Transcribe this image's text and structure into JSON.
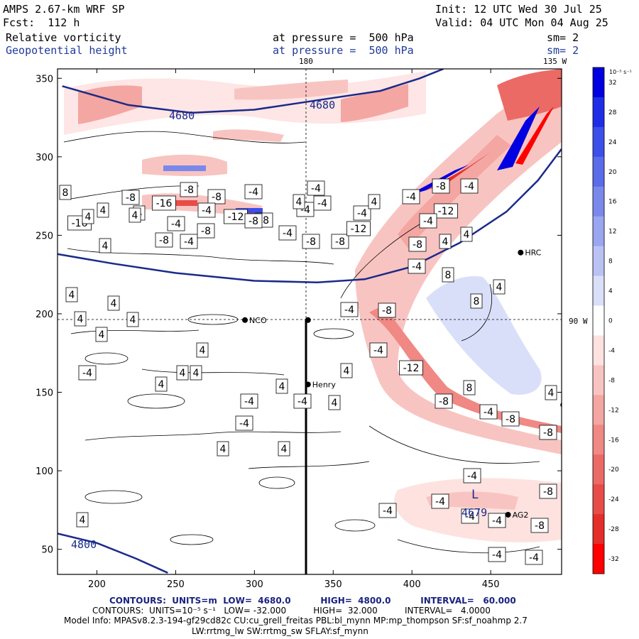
{
  "header": {
    "model": "AMPS 2.67-km WRF SP",
    "init": "Init: 12 UTC Wed 30 Jul 25",
    "fcst": "Fcst:  112 h",
    "valid": "Valid: 04 UTC Mon 04 Aug 25",
    "field1": "Relative vorticity",
    "field2": "Geopotential height",
    "pressure1": "at pressure =  500 hPa",
    "pressure2": "at pressure =  500 hPa",
    "sm1": "sm= 2",
    "sm2": "sm= 2"
  },
  "map_labels": {
    "lon_180": "180",
    "lon_135w": "135 W",
    "lon_90w": "90 W"
  },
  "stations": [
    {
      "name": "NCO",
      "x": 294,
      "y": 196
    },
    {
      "name": "Henry",
      "x": 334,
      "y": 155
    },
    {
      "name": "HRC",
      "x": 469,
      "y": 239
    },
    {
      "name": "AG2",
      "x": 461,
      "y": 72
    },
    {
      "name": "",
      "x": 334,
      "y": 196
    },
    {
      "name": "",
      "x": 496,
      "y": 142
    }
  ],
  "chart_data": {
    "type": "heatmap",
    "title": "Relative vorticity / Geopotential height at 500 hPa",
    "x_ticks": [
      200,
      250,
      300,
      350,
      400,
      450
    ],
    "y_ticks": [
      50,
      100,
      150,
      200,
      250,
      300,
      350
    ],
    "xlim": [
      175,
      495
    ],
    "ylim": [
      34,
      356
    ],
    "colorbar": {
      "unit": "10⁻⁵ s⁻¹",
      "levels": [
        32,
        28,
        24,
        20,
        16,
        12,
        8,
        4,
        0,
        -4,
        -8,
        -12,
        -16,
        -20,
        -24,
        -28,
        -32
      ],
      "colors": [
        "#0000e0",
        "#1f2ee6",
        "#3c4fe8",
        "#5a6ce9",
        "#7a88ec",
        "#9aa6f0",
        "#bac2f4",
        "#dadff9",
        "#ffffff",
        "#fde2e0",
        "#f8c4c1",
        "#f4a6a2",
        "#f08884",
        "#ec6a66",
        "#e84c48",
        "#e42e2a",
        "#ff0000"
      ]
    },
    "height_contours": [
      {
        "label": "4680",
        "points": [
          [
            178,
            345
          ],
          [
            220,
            333
          ],
          [
            260,
            328
          ],
          [
            300,
            330
          ],
          [
            340,
            336
          ],
          [
            380,
            342
          ],
          [
            405,
            350
          ],
          [
            420,
            356
          ]
        ]
      },
      {
        "label": "",
        "points": [
          [
            175,
            238
          ],
          [
            210,
            232
          ],
          [
            250,
            226
          ],
          [
            300,
            221
          ],
          [
            340,
            220
          ],
          [
            370,
            222
          ],
          [
            400,
            230
          ],
          [
            430,
            245
          ],
          [
            460,
            265
          ],
          [
            480,
            285
          ],
          [
            495,
            305
          ]
        ]
      },
      {
        "label": "4800",
        "points": [
          [
            175,
            60
          ],
          [
            200,
            54
          ],
          [
            225,
            44
          ],
          [
            245,
            35
          ]
        ]
      },
      {
        "label": "4679",
        "points": []
      }
    ],
    "vorticity_labels": [
      {
        "v": "-8",
        "x": 231,
        "y": 338
      },
      {
        "v": "-4",
        "x": 266,
        "y": 340
      },
      {
        "v": "-8",
        "x": 438,
        "y": 340
      },
      {
        "v": "-8",
        "x": 479,
        "y": 340
      },
      {
        "v": "-12",
        "x": 505,
        "y": 322
      },
      {
        "v": "-8",
        "x": 290,
        "y": 325
      },
      {
        "v": "-16",
        "x": 112,
        "y": 314
      },
      {
        "v": "-4",
        "x": 248,
        "y": 315
      },
      {
        "v": "-12",
        "x": 332,
        "y": 305
      },
      {
        "v": "-8",
        "x": 372,
        "y": 310
      },
      {
        "v": "-4",
        "x": 430,
        "y": 295
      },
      {
        "v": "-4",
        "x": 510,
        "y": 300
      },
      {
        "v": "-12",
        "x": 628,
        "y": 297
      },
      {
        "v": "4",
        "x": 657,
        "y": 330
      },
      {
        "v": "4",
        "x": 145,
        "y": 296
      },
      {
        "v": "4",
        "x": 196,
        "y": 300
      },
      {
        "v": "-8",
        "x": 184,
        "y": 278
      },
      {
        "v": "-8",
        "x": 305,
        "y": 277
      },
      {
        "v": "-4",
        "x": 357,
        "y": 270
      },
      {
        "v": "-8",
        "x": 266,
        "y": 267
      },
      {
        "v": "-4",
        "x": 445,
        "y": 265
      },
      {
        "v": "-8",
        "x": 621,
        "y": 262
      },
      {
        "v": "-4",
        "x": 661,
        "y": 262
      },
      {
        "v": "8",
        "x": 92,
        "y": 271
      },
      {
        "v": "-4",
        "x": 579,
        "y": 277
      },
      {
        "v": "-16",
        "x": 231,
        "y": 286
      },
      {
        "v": "-4",
        "x": 291,
        "y": 296
      },
      {
        "v": "-8",
        "x": 357,
        "y": 311
      },
      {
        "v": "-4",
        "x": 454,
        "y": 286
      },
      {
        "v": "4",
        "x": 527,
        "y": 284
      },
      {
        "v": "4",
        "x": 190,
        "y": 303
      },
      {
        "v": "4",
        "x": 124,
        "y": 305
      },
      {
        "v": "-4",
        "x": 405,
        "y": 328
      },
      {
        "v": "-4",
        "x": 603,
        "y": 311
      },
      {
        "v": "4",
        "x": 148,
        "y": 346
      },
      {
        "v": "-8",
        "x": 588,
        "y": 344
      },
      {
        "v": "4",
        "x": 627,
        "y": 340
      },
      {
        "v": "-4",
        "x": 587,
        "y": 375
      },
      {
        "v": "8",
        "x": 631,
        "y": 387
      },
      {
        "v": "4",
        "x": 703,
        "y": 404
      },
      {
        "v": "8",
        "x": 671,
        "y": 424
      },
      {
        "v": "4",
        "x": 101,
        "y": 415
      },
      {
        "v": "4",
        "x": 160,
        "y": 427
      },
      {
        "v": "4",
        "x": 113,
        "y": 449
      },
      {
        "v": "4",
        "x": 187,
        "y": 450
      },
      {
        "v": "-4",
        "x": 492,
        "y": 436
      },
      {
        "v": "-8",
        "x": 545,
        "y": 437
      },
      {
        "v": "4",
        "x": 143,
        "y": 471
      },
      {
        "v": "4",
        "x": 285,
        "y": 493
      },
      {
        "v": "-4",
        "x": 533,
        "y": 493
      },
      {
        "v": "-4",
        "x": 123,
        "y": 525
      },
      {
        "v": "4",
        "x": 257,
        "y": 525
      },
      {
        "v": "4",
        "x": 276,
        "y": 525
      },
      {
        "v": "-12",
        "x": 579,
        "y": 518
      },
      {
        "v": "4",
        "x": 488,
        "y": 522
      },
      {
        "v": "4",
        "x": 227,
        "y": 541
      },
      {
        "v": "4",
        "x": 397,
        "y": 544
      },
      {
        "v": "8",
        "x": 661,
        "y": 546
      },
      {
        "v": "-4",
        "x": 351,
        "y": 565
      },
      {
        "v": "-4",
        "x": 426,
        "y": 565
      },
      {
        "v": "4",
        "x": 471,
        "y": 567
      },
      {
        "v": "-8",
        "x": 625,
        "y": 565
      },
      {
        "v": "-4",
        "x": 688,
        "y": 580
      },
      {
        "v": "-8",
        "x": 719,
        "y": 590
      },
      {
        "v": "4",
        "x": 776,
        "y": 553
      },
      {
        "v": "-4",
        "x": 344,
        "y": 596
      },
      {
        "v": "-8",
        "x": 772,
        "y": 609
      },
      {
        "v": "4",
        "x": 314,
        "y": 632
      },
      {
        "v": "4",
        "x": 400,
        "y": 632
      },
      {
        "v": "-4",
        "x": 665,
        "y": 670
      },
      {
        "v": "-8",
        "x": 772,
        "y": 692
      },
      {
        "v": "-4",
        "x": 620,
        "y": 706
      },
      {
        "v": "-4",
        "x": 546,
        "y": 719
      },
      {
        "v": "-4",
        "x": 662,
        "y": 727
      },
      {
        "v": "-4",
        "x": 700,
        "y": 733
      },
      {
        "v": "-8",
        "x": 760,
        "y": 740
      },
      {
        "v": "4",
        "x": 116,
        "y": 732
      },
      {
        "v": "-4",
        "x": 700,
        "y": 781
      },
      {
        "v": "-4",
        "x": 752,
        "y": 785
      },
      {
        "v": "4",
        "x": 421,
        "y": 284
      }
    ]
  },
  "footer": {
    "contours1": "CONTOURS:  UNITS=m  LOW=  4680.0          HIGH=  4800.0          INTERVAL=   60.000",
    "contours2": "CONTOURS:  UNITS=10⁻⁵ s⁻¹   LOW= -32.000          HIGH=  32.000          INTERVAL=   4.0000",
    "model_info": "Model Info: MPASv8.2.3-194-gf29cd82c CU:cu_grell_freitas PBL:bl_mynn MP:mp_thompson SF:sf_noahmp 2.7",
    "model_info2": "LW:rrtmg_lw SW:rrtmg_sw SFLAY:sf_mynn"
  }
}
